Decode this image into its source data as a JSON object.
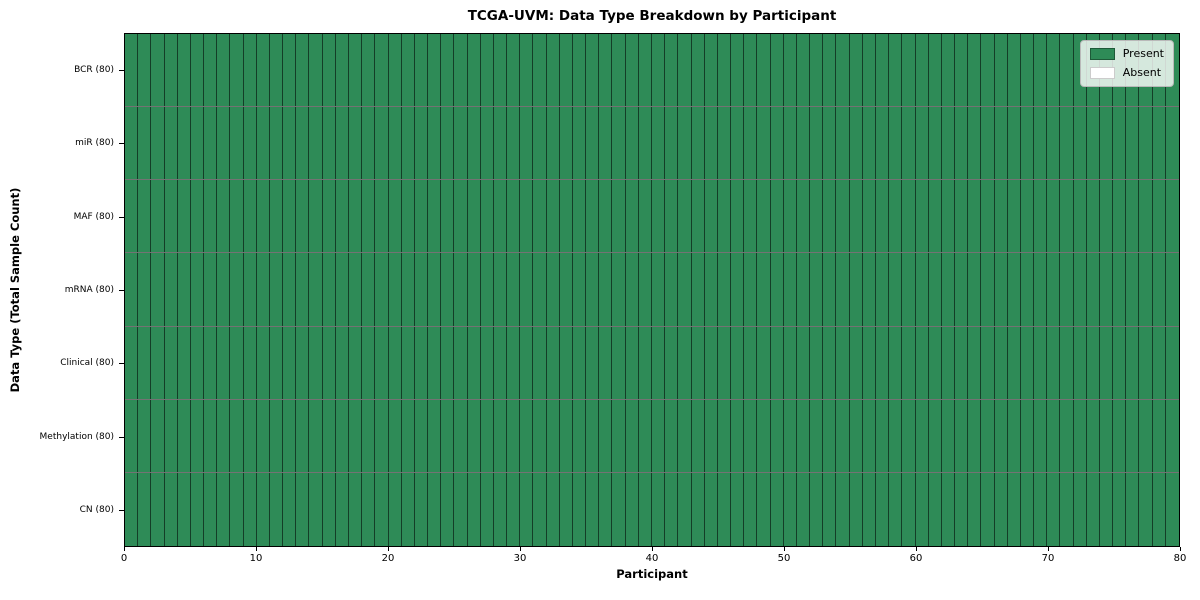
{
  "figure": {
    "background": "#ffffff"
  },
  "chart_data": {
    "type": "heatmap",
    "title": "TCGA-UVM: Data Type Breakdown by Participant",
    "xlabel": "Participant",
    "ylabel": "Data Type (Total Sample Count)",
    "x_range": [
      0,
      80
    ],
    "x_ticks": [
      0,
      10,
      20,
      30,
      40,
      50,
      60,
      70,
      80
    ],
    "n_participants": 80,
    "grid": false,
    "cell_encoding": {
      "1": "Present",
      "0": "Absent"
    },
    "rows": [
      {
        "label": "BCR (80)",
        "data_type": "BCR",
        "total_samples": 80,
        "present_count": 80,
        "absent_count": 0,
        "cells_rle": [
          [
            1,
            80
          ]
        ]
      },
      {
        "label": "miR (80)",
        "data_type": "miR",
        "total_samples": 80,
        "present_count": 80,
        "absent_count": 0,
        "cells_rle": [
          [
            1,
            80
          ]
        ]
      },
      {
        "label": "MAF (80)",
        "data_type": "MAF",
        "total_samples": 80,
        "present_count": 80,
        "absent_count": 0,
        "cells_rle": [
          [
            1,
            80
          ]
        ]
      },
      {
        "label": "mRNA (80)",
        "data_type": "mRNA",
        "total_samples": 80,
        "present_count": 80,
        "absent_count": 0,
        "cells_rle": [
          [
            1,
            80
          ]
        ]
      },
      {
        "label": "Clinical (80)",
        "data_type": "Clinical",
        "total_samples": 80,
        "present_count": 80,
        "absent_count": 0,
        "cells_rle": [
          [
            1,
            80
          ]
        ]
      },
      {
        "label": "Methylation (80)",
        "data_type": "Methylation",
        "total_samples": 80,
        "present_count": 80,
        "absent_count": 0,
        "cells_rle": [
          [
            1,
            80
          ]
        ]
      },
      {
        "label": "CN (80)",
        "data_type": "CN",
        "total_samples": 80,
        "present_count": 80,
        "absent_count": 0,
        "cells_rle": [
          [
            1,
            80
          ]
        ]
      }
    ],
    "colors": {
      "present": "#2e8b57",
      "absent": "#ffffff",
      "cell_border": "rgba(0,0,0,0.55)",
      "spine": "#000000"
    },
    "legend": {
      "position": "upper right",
      "entries": [
        {
          "label": "Present",
          "value": 1,
          "color": "#2e8b57"
        },
        {
          "label": "Absent",
          "value": 0,
          "color": "#ffffff"
        }
      ]
    }
  }
}
